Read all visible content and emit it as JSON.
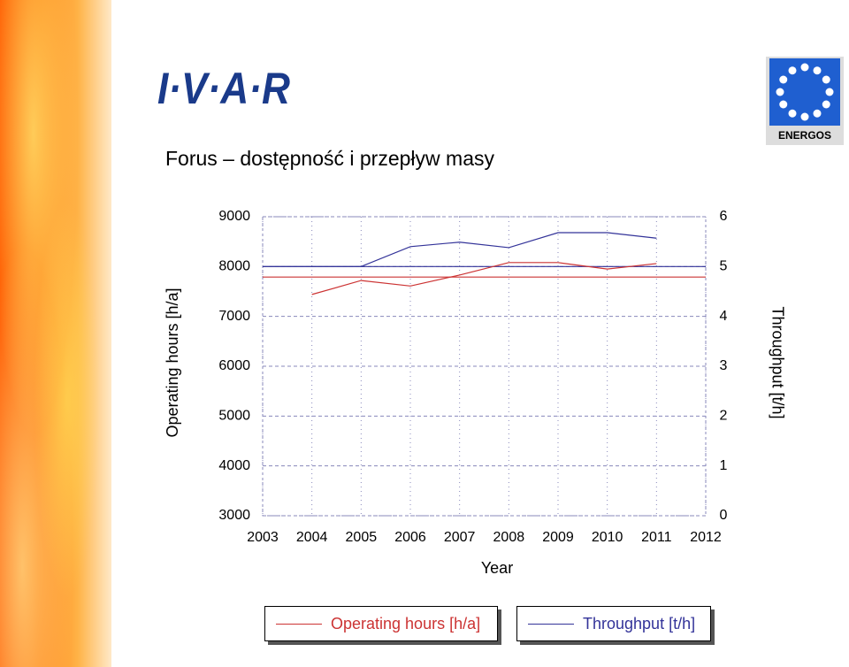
{
  "header": {
    "logo_left": "I·V·A·R",
    "logo_right": "ENERGOS"
  },
  "chart_data": {
    "type": "line",
    "title": "Forus – dostępność i przepływ masy",
    "x_label": "Year",
    "y_label": "Operating hours [h/a]",
    "y2_label": "Throughput [t/h]",
    "x": [
      2003,
      2004,
      2005,
      2006,
      2007,
      2008,
      2009,
      2010,
      2011,
      2012
    ],
    "xlim": [
      2003,
      2012
    ],
    "xticks": [
      2003,
      2004,
      2005,
      2006,
      2007,
      2008,
      2009,
      2010,
      2011,
      2012
    ],
    "ylim": [
      3000,
      9000
    ],
    "yticks": [
      3000,
      4000,
      5000,
      6000,
      7000,
      8000,
      9000
    ],
    "y2lim": [
      0,
      6
    ],
    "y2ticks": [
      0,
      1,
      2,
      3,
      4,
      5,
      6
    ],
    "grid": true,
    "series": [
      {
        "name": "Operating hours [h/a]",
        "color": "#cc3333",
        "values": [
          null,
          7440,
          7720,
          7610,
          7830,
          8080,
          8080,
          7950,
          8060,
          null
        ]
      },
      {
        "name": "Throughput [t/h]",
        "color": "#333399",
        "axis": "y2",
        "values": [
          5.0,
          5.0,
          5.0,
          5.4,
          5.49,
          5.38,
          5.68,
          5.68,
          5.57,
          null
        ]
      }
    ],
    "reference_lines": [
      {
        "value": 7790,
        "color": "#cc3333"
      },
      {
        "value": 5.0,
        "color": "#333399",
        "axis": "y2"
      }
    ]
  }
}
